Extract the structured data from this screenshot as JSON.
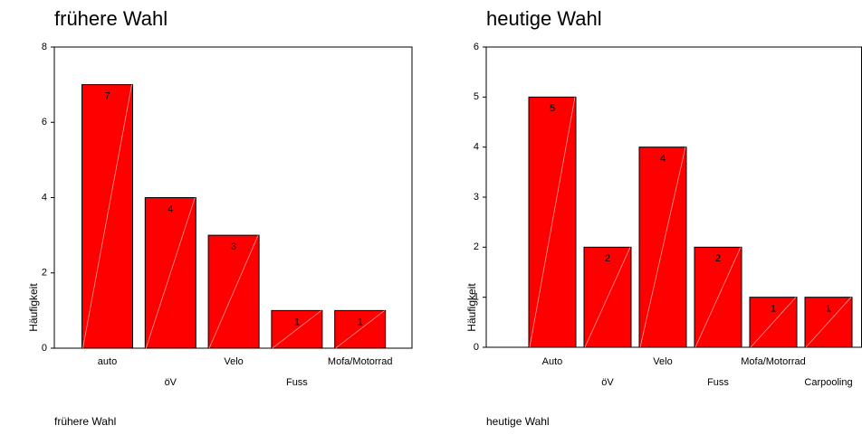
{
  "chart_data": [
    {
      "type": "bar",
      "title": "frühere Wahl",
      "x_label": "frühere Wahl",
      "y_label": "Häufigkeit",
      "categories": [
        "auto",
        "öV",
        "Velo",
        "Fuss",
        "Mofa/Motorrad"
      ],
      "values": [
        7,
        4,
        3,
        1,
        1
      ],
      "color": "#ff0000",
      "ylim": [
        0,
        8
      ],
      "yticks": [
        0,
        2,
        4,
        6,
        8
      ]
    },
    {
      "type": "bar",
      "title": "heutige Wahl",
      "x_label": "heutige Wahl",
      "y_label": "Häufigkeit",
      "categories": [
        "Auto",
        "öV",
        "Velo",
        "Fuss",
        "Mofa/Motorrad",
        "Carpooling"
      ],
      "values": [
        5,
        2,
        4,
        2,
        1,
        1
      ],
      "color": "#ff0000",
      "ylim": [
        0,
        6
      ],
      "yticks": [
        0,
        1,
        2,
        3,
        4,
        5,
        6
      ]
    }
  ]
}
